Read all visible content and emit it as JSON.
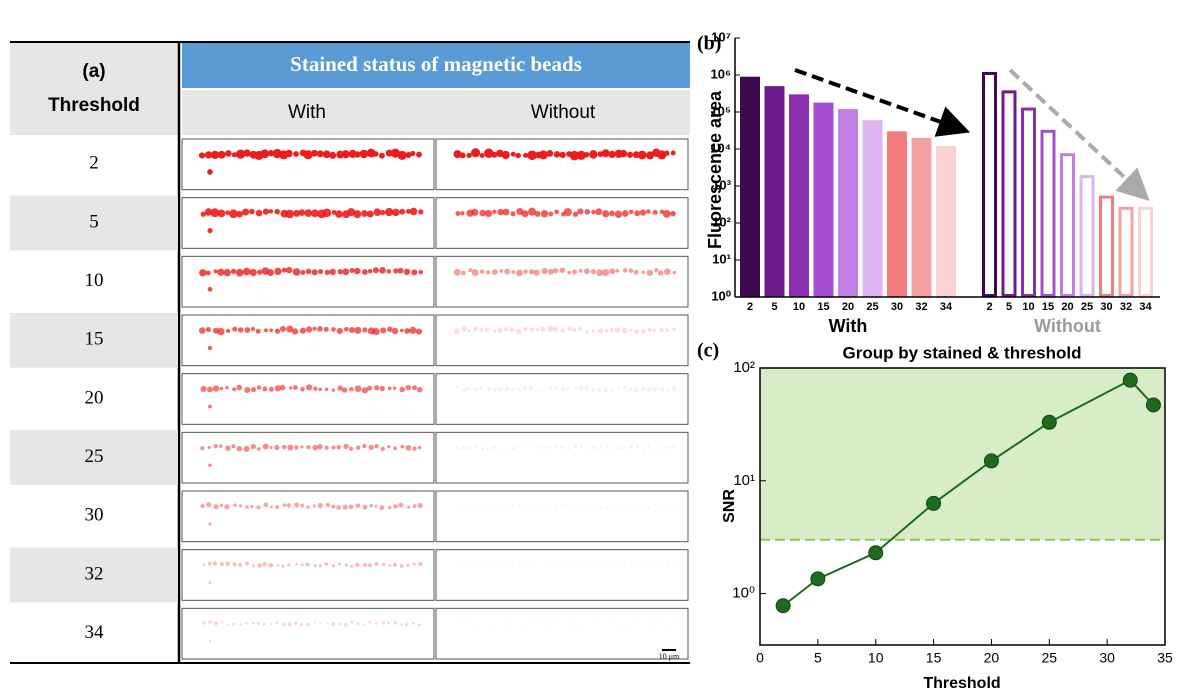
{
  "table": {
    "panel": "(a)",
    "header": {
      "threshold": "Threshold",
      "group": "Stained status of magnetic beads",
      "columns": [
        "With",
        "Without"
      ]
    },
    "rows": [
      "2",
      "5",
      "10",
      "15",
      "20",
      "25",
      "30",
      "32",
      "34"
    ],
    "scale_bar": "10 μm"
  },
  "chart_data": [
    {
      "type": "bar",
      "panel": "(b)",
      "y_label": "Fluorescence area",
      "log_scale": true,
      "categories": [
        "2",
        "5",
        "10",
        "15",
        "20",
        "25",
        "30",
        "32",
        "34"
      ],
      "colors": [
        "#3e0b50",
        "#6c1b8c",
        "#8a2fb0",
        "#a54fce",
        "#c27fe2",
        "#ddb3f0",
        "#f27c7c",
        "#f5a0a0",
        "#fbd2d2"
      ],
      "series": [
        {
          "name": "With",
          "color": "#000000",
          "filled": true,
          "values": [
            900000,
            500000,
            300000,
            180000,
            120000,
            60000,
            30000,
            20000,
            12000
          ]
        },
        {
          "name": "Without",
          "color": "#9a9a9a",
          "filled": false,
          "values": [
            1100000,
            350000,
            120000,
            30000,
            7000,
            1800,
            500,
            250,
            250
          ]
        }
      ],
      "ylim": [
        1,
        10000000
      ],
      "yticks": [
        {
          "value": 1,
          "label": "10⁰"
        },
        {
          "value": 10,
          "label": "10¹"
        },
        {
          "value": 100,
          "label": "10²"
        },
        {
          "value": 1000,
          "label": "10³"
        },
        {
          "value": 10000,
          "label": "10⁴"
        },
        {
          "value": 100000,
          "label": "10⁵"
        },
        {
          "value": 1000000,
          "label": "10⁶"
        },
        {
          "value": 10000000,
          "label": "10⁷"
        }
      ]
    },
    {
      "type": "line",
      "panel": "(c)",
      "title": "Group by stained & threshold",
      "x_label": "Threshold",
      "y_label": "SNR",
      "log_scale": true,
      "x": [
        2,
        5,
        10,
        15,
        20,
        25,
        32,
        34
      ],
      "values": [
        0.78,
        1.35,
        2.3,
        6.3,
        15,
        33,
        78,
        47
      ],
      "color": "#1e6a1e",
      "reference_line": 3,
      "reference_color": "#8ccc50",
      "shade_color": "#d9ecc8",
      "xlim": [
        0,
        35
      ],
      "xticks": [
        0,
        5,
        10,
        15,
        20,
        25,
        30,
        35
      ],
      "ylim": [
        0.35,
        100
      ],
      "yticks": [
        {
          "value": 1,
          "label": "10⁰"
        },
        {
          "value": 10,
          "label": "10¹"
        },
        {
          "value": 100,
          "label": "10²"
        }
      ]
    }
  ]
}
